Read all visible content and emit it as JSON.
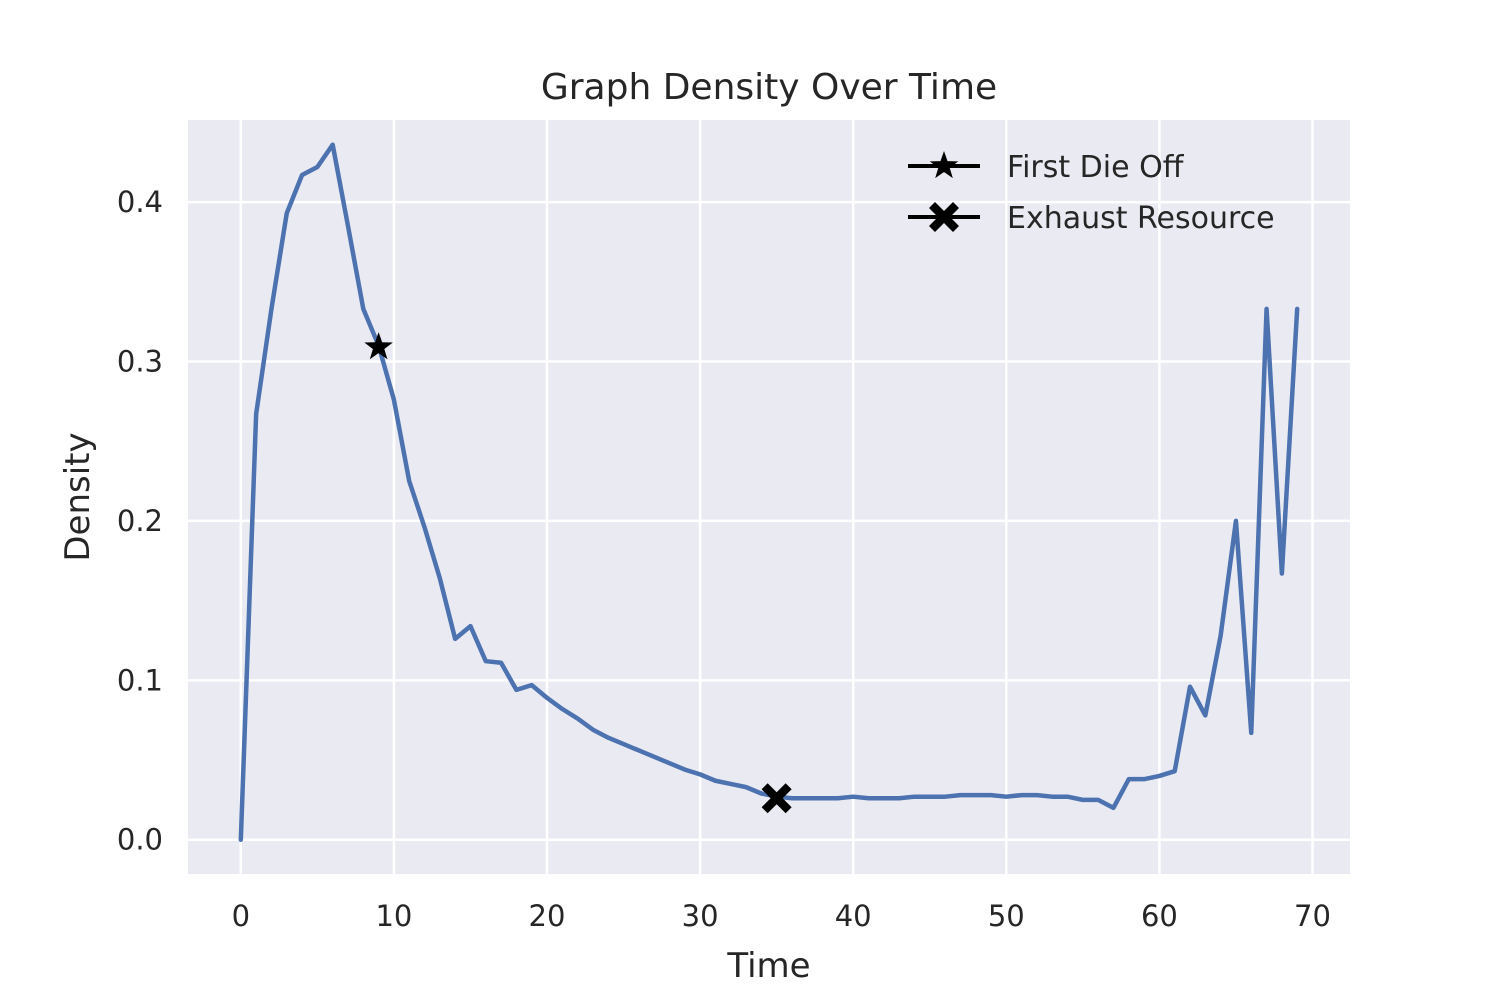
{
  "chart_data": {
    "type": "line",
    "title": "Graph Density Over Time",
    "xlabel": "Time",
    "ylabel": "Density",
    "xlim": [
      -3.45,
      72.45
    ],
    "ylim": [
      -0.0215,
      0.4515
    ],
    "xticks": [
      0,
      10,
      20,
      30,
      40,
      50,
      60,
      70
    ],
    "yticks": [
      0.0,
      0.1,
      0.2,
      0.3,
      0.4
    ],
    "xtick_labels": [
      "0",
      "10",
      "20",
      "30",
      "40",
      "50",
      "60",
      "70"
    ],
    "ytick_labels": [
      "0.0",
      "0.1",
      "0.2",
      "0.3",
      "0.4"
    ],
    "grid": true,
    "legend_position": "top-right",
    "series": [
      {
        "color": "#4c72b0",
        "x": [
          0,
          1,
          2,
          3,
          4,
          5,
          6,
          7,
          8,
          9,
          10,
          11,
          12,
          13,
          14,
          15,
          16,
          17,
          18,
          19,
          20,
          21,
          22,
          23,
          24,
          25,
          26,
          27,
          28,
          29,
          30,
          31,
          32,
          33,
          34,
          35,
          36,
          37,
          38,
          39,
          40,
          41,
          42,
          43,
          44,
          45,
          46,
          47,
          48,
          49,
          50,
          51,
          52,
          53,
          54,
          55,
          56,
          57,
          58,
          59,
          60,
          61,
          62,
          63,
          64,
          65,
          66,
          67,
          68,
          69
        ],
        "y": [
          0.0,
          0.267,
          0.333,
          0.393,
          0.417,
          0.422,
          0.436,
          0.385,
          0.333,
          0.31,
          0.276,
          0.225,
          0.196,
          0.164,
          0.126,
          0.134,
          0.112,
          0.111,
          0.094,
          0.097,
          0.089,
          0.082,
          0.076,
          0.069,
          0.064,
          0.06,
          0.056,
          0.052,
          0.048,
          0.044,
          0.041,
          0.037,
          0.035,
          0.033,
          0.029,
          0.027,
          0.026,
          0.026,
          0.026,
          0.026,
          0.027,
          0.026,
          0.026,
          0.026,
          0.027,
          0.027,
          0.027,
          0.028,
          0.028,
          0.028,
          0.027,
          0.028,
          0.028,
          0.027,
          0.027,
          0.025,
          0.025,
          0.02,
          0.038,
          0.038,
          0.04,
          0.043,
          0.096,
          0.078,
          0.128,
          0.2,
          0.067,
          0.333,
          0.167,
          0.333
        ]
      }
    ],
    "markers": [
      {
        "name": "First Die Off",
        "symbol": "star",
        "x": 9,
        "y": 0.309,
        "color": "#000000"
      },
      {
        "name": "Exhaust Resource",
        "symbol": "x",
        "x": 35,
        "y": 0.026,
        "color": "#000000"
      }
    ],
    "legend": [
      {
        "label": "First Die Off",
        "symbol": "star"
      },
      {
        "label": "Exhaust Resource",
        "symbol": "x"
      }
    ],
    "colors": {
      "plot_background": "#eaeaf2",
      "grid": "#ffffff",
      "line": "#4c72b0"
    }
  }
}
